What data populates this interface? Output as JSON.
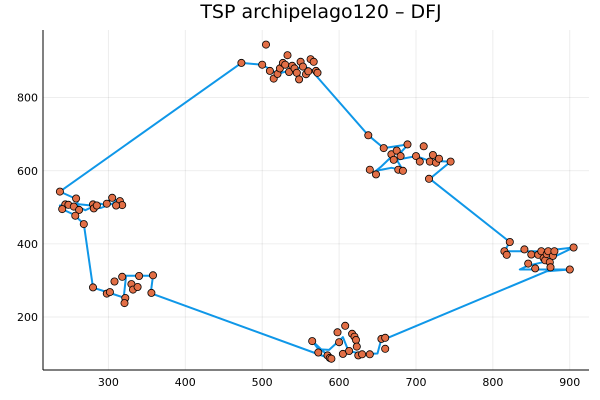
{
  "chart_data": {
    "type": "line",
    "title": "TSP archipelago120 – DFJ",
    "xlabel": "",
    "ylabel": "",
    "xlim": [
      215,
      925
    ],
    "ylim": [
      55,
      985
    ],
    "x_ticks": [
      300,
      400,
      500,
      600,
      700,
      800,
      900
    ],
    "y_ticks": [
      200,
      400,
      600,
      800
    ],
    "grid": true,
    "legend": "none",
    "colors": {
      "tour": "#0f97e8",
      "cities": "#e26f46",
      "outline": "#000000"
    },
    "series": [
      {
        "kind": "tour-line",
        "points": [
          [
            237,
            543
          ],
          [
            473,
            895
          ],
          [
            500,
            890
          ],
          [
            520,
            865
          ],
          [
            545,
            880
          ],
          [
            555,
            885
          ],
          [
            570,
            870
          ],
          [
            568,
            865
          ],
          [
            638,
            697
          ],
          [
            658,
            662
          ],
          [
            690,
            672
          ],
          [
            680,
            650
          ],
          [
            672,
            646
          ],
          [
            655,
            612
          ],
          [
            648,
            600
          ],
          [
            668,
            608
          ],
          [
            683,
            602
          ],
          [
            675,
            630
          ],
          [
            700,
            640
          ],
          [
            718,
            627
          ],
          [
            745,
            625
          ],
          [
            718,
            578
          ],
          [
            822,
            405
          ],
          [
            815,
            380
          ],
          [
            862,
            380
          ],
          [
            905,
            390
          ],
          [
            865,
            350
          ],
          [
            845,
            340
          ],
          [
            835,
            330
          ],
          [
            900,
            330
          ],
          [
            870,
            325
          ],
          [
            660,
            140
          ],
          [
            655,
            140
          ],
          [
            650,
            100
          ],
          [
            630,
            98
          ],
          [
            612,
            108
          ],
          [
            605,
            145
          ],
          [
            600,
            135
          ],
          [
            587,
            110
          ],
          [
            573,
            112
          ],
          [
            565,
            135
          ],
          [
            590,
            85
          ],
          [
            355,
            265
          ],
          [
            358,
            313
          ],
          [
            340,
            313
          ],
          [
            323,
            313
          ],
          [
            320,
            253
          ],
          [
            300,
            267
          ],
          [
            280,
            280
          ],
          [
            268,
            455
          ],
          [
            255,
            480
          ],
          [
            240,
            495
          ],
          [
            237,
            505
          ],
          [
            255,
            510
          ],
          [
            278,
            505
          ],
          [
            290,
            510
          ],
          [
            297,
            505
          ],
          [
            303,
            525
          ],
          [
            315,
            515
          ],
          [
            318,
            503
          ],
          [
            315,
            522
          ],
          [
            305,
            510
          ],
          [
            290,
            498
          ],
          [
            280,
            502
          ],
          [
            270,
            492
          ],
          [
            262,
            500
          ],
          [
            258,
            523
          ],
          [
            237,
            543
          ]
        ]
      },
      {
        "kind": "cities",
        "points": [
          [
            237,
            543
          ],
          [
            244,
            508
          ],
          [
            240,
            495
          ],
          [
            248,
            507
          ],
          [
            255,
            502
          ],
          [
            258,
            524
          ],
          [
            262,
            493
          ],
          [
            257,
            477
          ],
          [
            268,
            454
          ],
          [
            280,
            508
          ],
          [
            281,
            497
          ],
          [
            285,
            505
          ],
          [
            298,
            510
          ],
          [
            305,
            526
          ],
          [
            315,
            517
          ],
          [
            318,
            506
          ],
          [
            310,
            505
          ],
          [
            280,
            281
          ],
          [
            298,
            264
          ],
          [
            302,
            268
          ],
          [
            308,
            297
          ],
          [
            318,
            310
          ],
          [
            322,
            252
          ],
          [
            321,
            238
          ],
          [
            330,
            290
          ],
          [
            332,
            275
          ],
          [
            338,
            282
          ],
          [
            340,
            312
          ],
          [
            358,
            314
          ],
          [
            356,
            266
          ],
          [
            473,
            895
          ],
          [
            505,
            945
          ],
          [
            500,
            890
          ],
          [
            510,
            873
          ],
          [
            515,
            852
          ],
          [
            520,
            865
          ],
          [
            523,
            880
          ],
          [
            527,
            895
          ],
          [
            530,
            890
          ],
          [
            533,
            916
          ],
          [
            535,
            870
          ],
          [
            539,
            887
          ],
          [
            542,
            880
          ],
          [
            545,
            868
          ],
          [
            548,
            850
          ],
          [
            550,
            898
          ],
          [
            553,
            885
          ],
          [
            557,
            864
          ],
          [
            560,
            872
          ],
          [
            563,
            905
          ],
          [
            567,
            898
          ],
          [
            570,
            873
          ],
          [
            572,
            868
          ],
          [
            638,
            697
          ],
          [
            640,
            603
          ],
          [
            648,
            590
          ],
          [
            658,
            662
          ],
          [
            668,
            645
          ],
          [
            671,
            630
          ],
          [
            675,
            655
          ],
          [
            677,
            603
          ],
          [
            680,
            640
          ],
          [
            683,
            600
          ],
          [
            689,
            672
          ],
          [
            700,
            640
          ],
          [
            705,
            625
          ],
          [
            710,
            667
          ],
          [
            717,
            578
          ],
          [
            718,
            625
          ],
          [
            722,
            643
          ],
          [
            726,
            622
          ],
          [
            730,
            633
          ],
          [
            745,
            625
          ],
          [
            815,
            380
          ],
          [
            818,
            370
          ],
          [
            822,
            405
          ],
          [
            841,
            385
          ],
          [
            846,
            346
          ],
          [
            850,
            371
          ],
          [
            855,
            333
          ],
          [
            859,
            370
          ],
          [
            863,
            380
          ],
          [
            866,
            361
          ],
          [
            868,
            355
          ],
          [
            870,
            372
          ],
          [
            872,
            380
          ],
          [
            874,
            350
          ],
          [
            875,
            336
          ],
          [
            878,
            367
          ],
          [
            880,
            380
          ],
          [
            900,
            330
          ],
          [
            905,
            390
          ],
          [
            565,
            134
          ],
          [
            573,
            103
          ],
          [
            585,
            95
          ],
          [
            588,
            88
          ],
          [
            590,
            86
          ],
          [
            598,
            158
          ],
          [
            600,
            131
          ],
          [
            605,
            99
          ],
          [
            608,
            176
          ],
          [
            613,
            107
          ],
          [
            617,
            154
          ],
          [
            620,
            146
          ],
          [
            622,
            137
          ],
          [
            623,
            119
          ],
          [
            625,
            95
          ],
          [
            630,
            98
          ],
          [
            640,
            98
          ],
          [
            655,
            140
          ],
          [
            660,
            143
          ],
          [
            660,
            113
          ]
        ]
      }
    ]
  }
}
